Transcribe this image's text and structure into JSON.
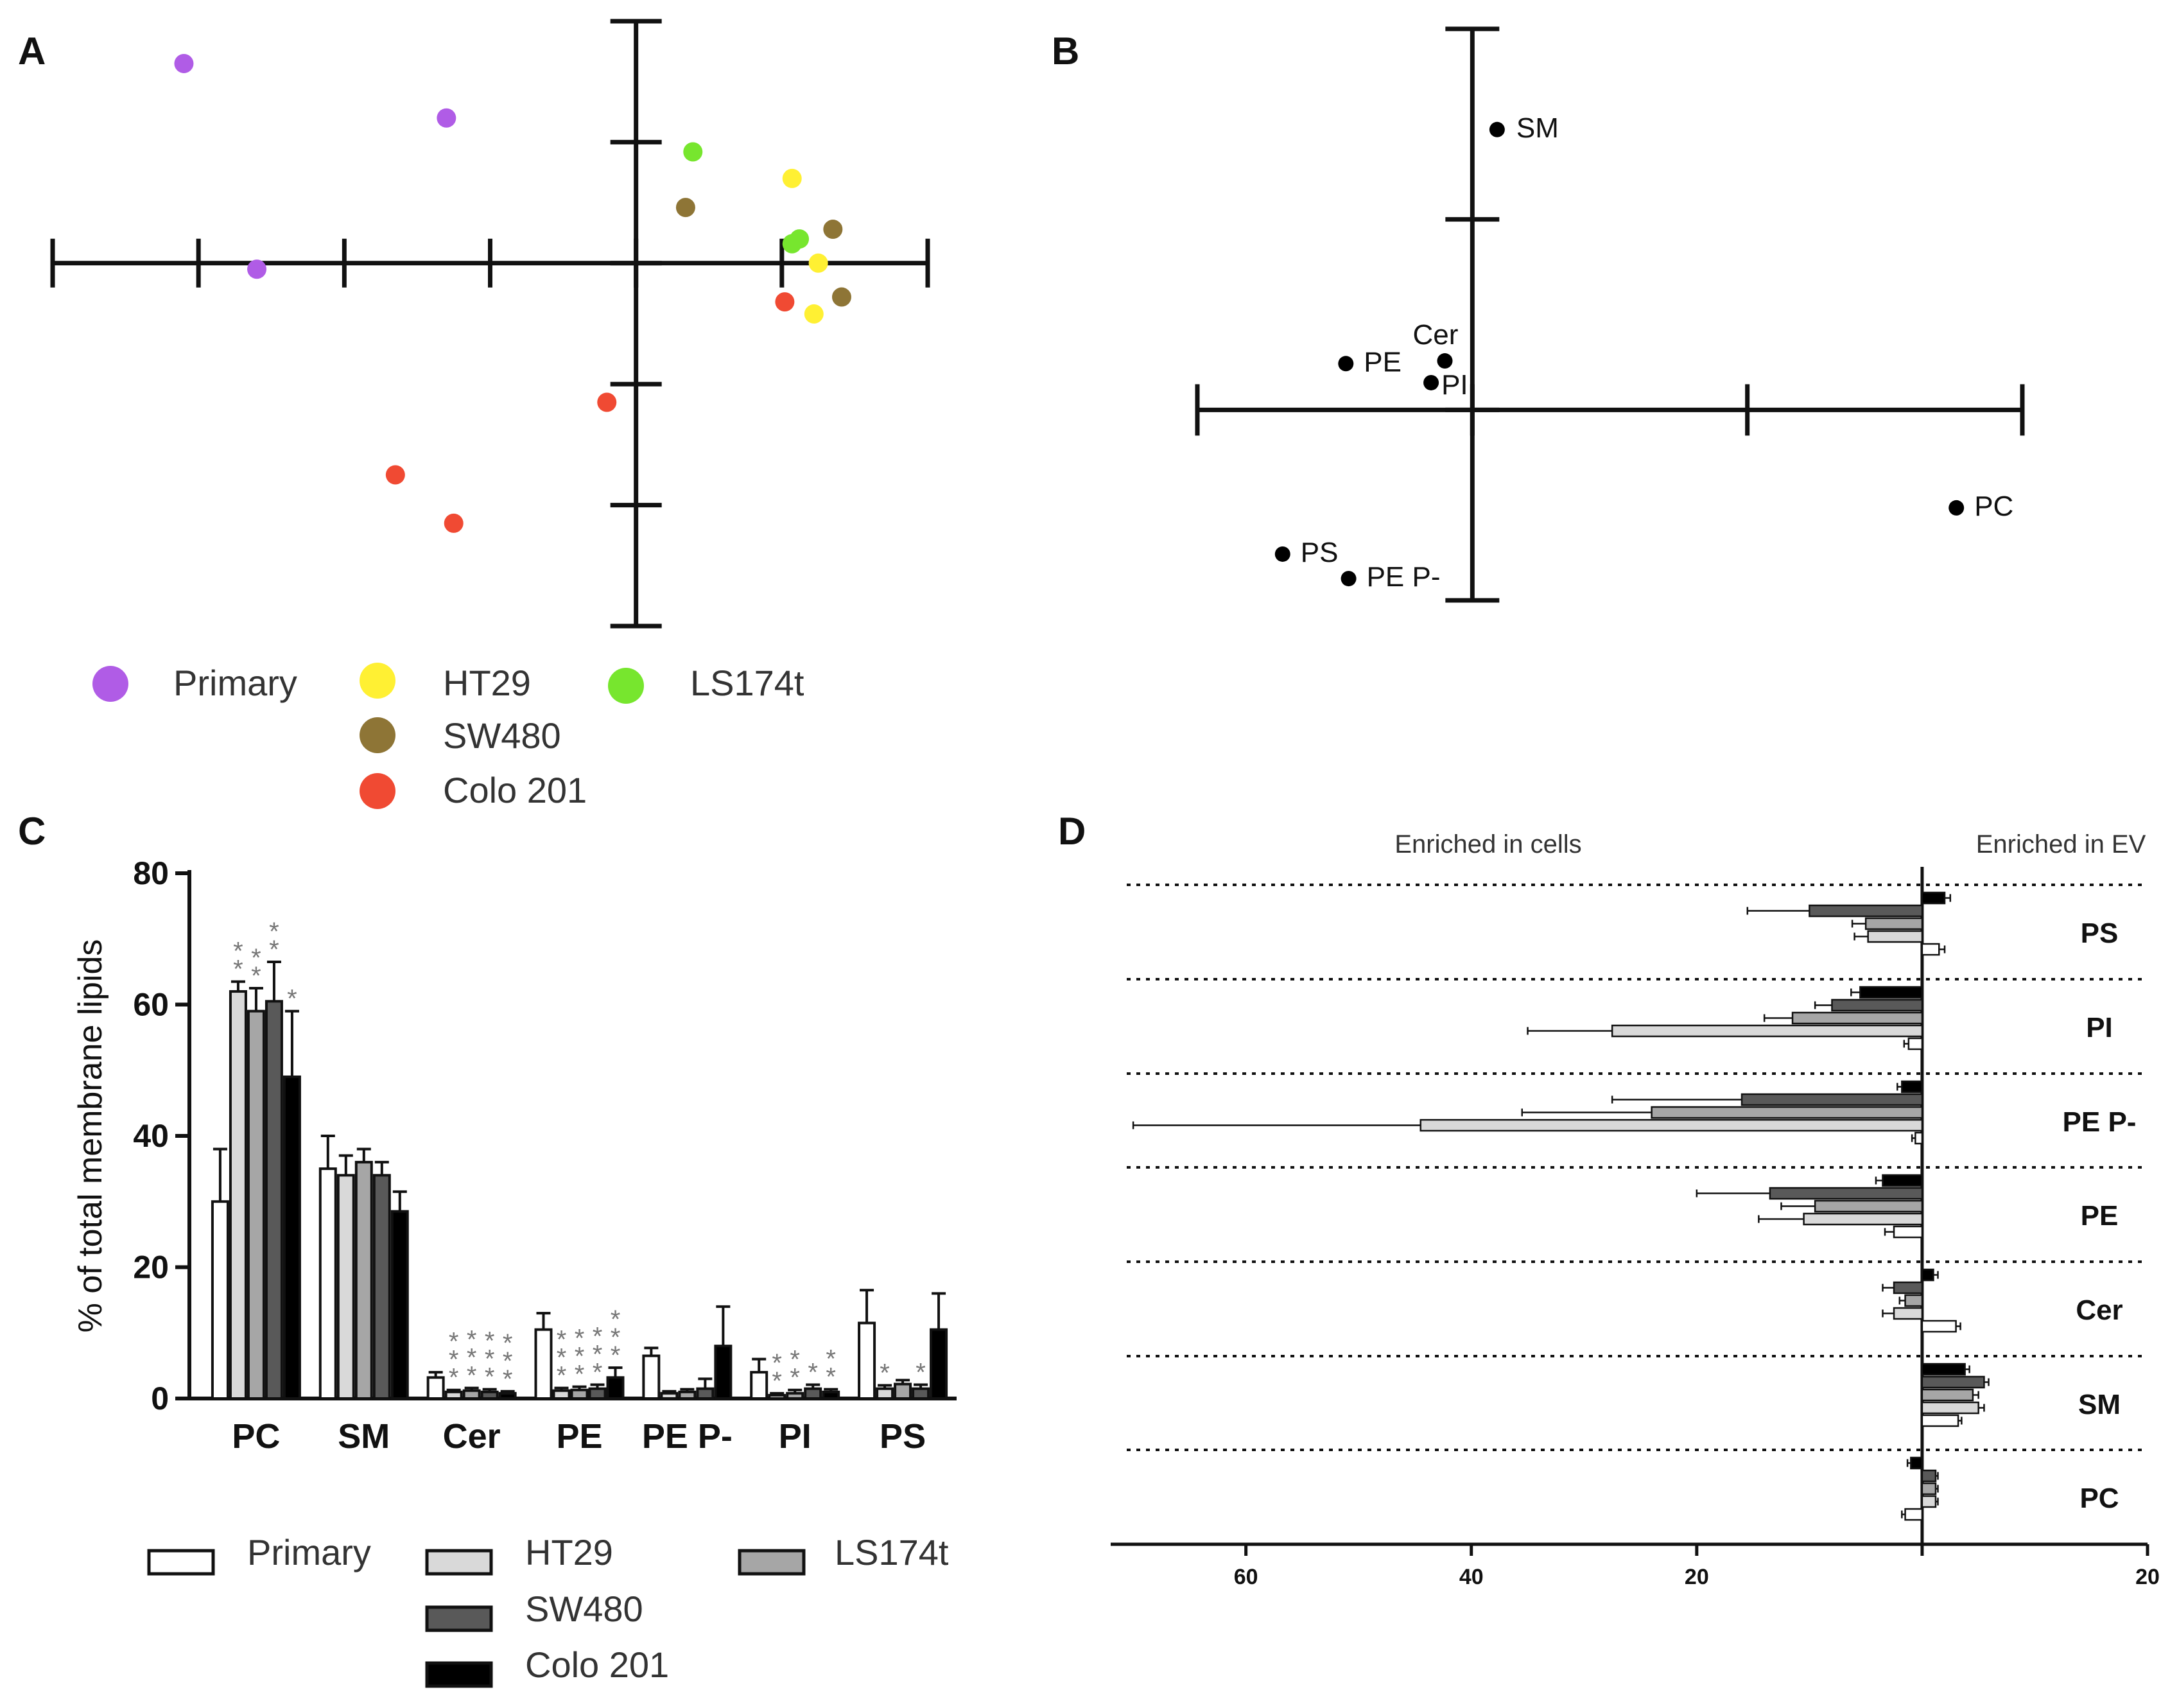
{
  "panels": {
    "a": "A",
    "b": "B",
    "c": "C",
    "d": "D"
  },
  "colors": {
    "primary": "#b05ce6",
    "ht29": "#fff033",
    "ls174t": "#77e62e",
    "sw480": "#8e7536",
    "colo201": "#f04a33",
    "bar_primary": "#ffffff",
    "bar_ht29": "#d9d9d9",
    "bar_ls174t": "#a6a6a6",
    "bar_sw480": "#595959",
    "bar_colo201": "#000000"
  },
  "legend_a": [
    {
      "key": "primary",
      "label": "Primary"
    },
    {
      "key": "ht29",
      "label": "HT29"
    },
    {
      "key": "ls174t",
      "label": "LS174t"
    },
    {
      "key": "sw480",
      "label": "SW480"
    },
    {
      "key": "colo201",
      "label": "Colo 201"
    }
  ],
  "legend_c": [
    {
      "key": "bar_primary",
      "label": "Primary"
    },
    {
      "key": "bar_ht29",
      "label": "HT29"
    },
    {
      "key": "bar_ls174t",
      "label": "LS174t"
    },
    {
      "key": "bar_sw480",
      "label": "SW480"
    },
    {
      "key": "bar_colo201",
      "label": "Colo 201"
    }
  ],
  "chart_data": [
    {
      "id": "A",
      "type": "scatter",
      "xlim": [
        -4,
        2
      ],
      "ylim": [
        -3,
        2
      ],
      "xticks": [
        -4,
        -3,
        -2,
        -1,
        0,
        1,
        2
      ],
      "yticks": [
        -3,
        -2,
        -1,
        0,
        1,
        2
      ],
      "series": [
        {
          "key": "primary",
          "points": [
            [
              -3.1,
              1.65
            ],
            [
              -1.3,
              1.2
            ],
            [
              -2.6,
              -0.05
            ]
          ]
        },
        {
          "key": "ht29",
          "points": [
            [
              1.07,
              0.7
            ],
            [
              1.25,
              0.0
            ],
            [
              1.22,
              -0.42
            ]
          ]
        },
        {
          "key": "ls174t",
          "points": [
            [
              0.39,
              0.92
            ],
            [
              1.12,
              0.2
            ],
            [
              1.07,
              0.16
            ]
          ]
        },
        {
          "key": "sw480",
          "points": [
            [
              0.34,
              0.46
            ],
            [
              1.35,
              0.28
            ],
            [
              1.41,
              -0.28
            ]
          ]
        },
        {
          "key": "colo201",
          "points": [
            [
              1.02,
              -0.32
            ],
            [
              -0.2,
              -1.15
            ],
            [
              -1.65,
              -1.75
            ],
            [
              -1.25,
              -2.15
            ]
          ]
        }
      ]
    },
    {
      "id": "B",
      "type": "scatter",
      "xlim": [
        -1,
        2
      ],
      "ylim": [
        -0.7,
        1.4
      ],
      "xticks": [
        -1,
        0,
        1,
        2
      ],
      "yticks": [
        -0.7,
        0,
        0.7,
        1.4
      ],
      "points": [
        {
          "label": "SM",
          "x": 0.09,
          "y": 1.03
        },
        {
          "label": "Cer",
          "x": -0.1,
          "y": 0.18
        },
        {
          "label": "PE",
          "x": -0.46,
          "y": 0.17
        },
        {
          "label": "PI",
          "x": -0.15,
          "y": 0.1
        },
        {
          "label": "PC",
          "x": 1.76,
          "y": -0.36
        },
        {
          "label": "PS",
          "x": -0.69,
          "y": -0.53
        },
        {
          "label": "PE P-",
          "x": -0.45,
          "y": -0.62
        }
      ]
    },
    {
      "id": "C",
      "type": "bar",
      "ylabel": "% of total membrane lipids",
      "ylim": [
        0,
        80
      ],
      "yticks": [
        0,
        20,
        40,
        60,
        80
      ],
      "categories": [
        "PC",
        "SM",
        "Cer",
        "PE",
        "PE P-",
        "PI",
        "PS"
      ],
      "series": [
        {
          "key": "bar_primary",
          "values": [
            30,
            35,
            3.2,
            10.5,
            6.5,
            4,
            11.5
          ],
          "errors": [
            8,
            5,
            0.8,
            2.5,
            1.2,
            2,
            5
          ]
        },
        {
          "key": "bar_ht29",
          "values": [
            62,
            34,
            1,
            1.2,
            0.8,
            0.5,
            1.5
          ],
          "errors": [
            1.5,
            3,
            0.3,
            0.4,
            0.3,
            0.3,
            0.5
          ]
        },
        {
          "key": "bar_ls174t",
          "values": [
            59,
            36,
            1.2,
            1.3,
            1,
            0.8,
            2.2
          ],
          "errors": [
            3.5,
            2,
            0.4,
            0.5,
            0.4,
            0.5,
            0.6
          ]
        },
        {
          "key": "bar_sw480",
          "values": [
            60.5,
            34,
            1,
            1.5,
            1.5,
            1.5,
            1.5
          ],
          "errors": [
            6,
            2,
            0.4,
            0.6,
            1.5,
            0.6,
            0.6
          ]
        },
        {
          "key": "bar_colo201",
          "values": [
            49,
            28.5,
            0.8,
            3.2,
            8,
            1,
            10.5
          ],
          "errors": [
            10,
            3,
            0.3,
            1.5,
            6,
            0.4,
            5.5
          ]
        }
      ],
      "significance": [
        {
          "category": 0,
          "series": 1,
          "marks": "**"
        },
        {
          "category": 0,
          "series": 2,
          "marks": "**"
        },
        {
          "category": 0,
          "series": 3,
          "marks": "**"
        },
        {
          "category": 0,
          "series": 4,
          "marks": "*"
        },
        {
          "category": 2,
          "series": 1,
          "marks": "***"
        },
        {
          "category": 2,
          "series": 2,
          "marks": "***"
        },
        {
          "category": 2,
          "series": 3,
          "marks": "***"
        },
        {
          "category": 2,
          "series": 4,
          "marks": "***"
        },
        {
          "category": 3,
          "series": 1,
          "marks": "***"
        },
        {
          "category": 3,
          "series": 2,
          "marks": "***"
        },
        {
          "category": 3,
          "series": 3,
          "marks": "***"
        },
        {
          "category": 3,
          "series": 4,
          "marks": "***"
        },
        {
          "category": 5,
          "series": 1,
          "marks": "**"
        },
        {
          "category": 5,
          "series": 2,
          "marks": "**"
        },
        {
          "category": 5,
          "series": 3,
          "marks": "*"
        },
        {
          "category": 5,
          "series": 4,
          "marks": "**"
        },
        {
          "category": 6,
          "series": 1,
          "marks": "*"
        },
        {
          "category": 6,
          "series": 3,
          "marks": "*"
        }
      ]
    },
    {
      "id": "D",
      "type": "bar",
      "orientation": "horizontal",
      "left_heading": "Enriched in cells",
      "right_heading": "Enriched in EV",
      "xlim": [
        -72,
        20
      ],
      "xticks": [
        -60,
        -40,
        -20,
        0,
        20
      ],
      "xtick_labels": [
        "60",
        "40",
        "20",
        "",
        "20"
      ],
      "categories": [
        "PS",
        "PI",
        "PE P-",
        "PE",
        "Cer",
        "SM",
        "PC"
      ],
      "series_keys": [
        "bar_colo201",
        "bar_sw480",
        "bar_ls174t",
        "bar_ht29",
        "bar_primary"
      ],
      "values": [
        [
          2,
          -10,
          -5,
          -4.8,
          1.5
        ],
        [
          -5.5,
          -8,
          -11.5,
          -27.5,
          -1.2
        ],
        [
          -1.8,
          -16,
          -24,
          -44.5,
          -0.6
        ],
        [
          -3.5,
          -13.5,
          -9.5,
          -10.5,
          -2.5
        ],
        [
          1,
          -2.5,
          -1.5,
          -2.5,
          3
        ],
        [
          3.8,
          5.5,
          4.5,
          5,
          3.2
        ],
        [
          -1,
          1.2,
          1.2,
          1.2,
          -1.5
        ]
      ],
      "errors": [
        [
          0.5,
          5.5,
          1.2,
          1.2,
          0.5
        ],
        [
          0.8,
          1.5,
          2.5,
          7.5,
          0.4
        ],
        [
          0.4,
          11.5,
          11.5,
          25.5,
          0.3
        ],
        [
          0.6,
          6.5,
          3,
          4,
          0.8
        ],
        [
          0.4,
          1,
          0.5,
          1,
          0.4
        ],
        [
          0.4,
          0.4,
          0.5,
          0.5,
          0.3
        ],
        [
          0.3,
          0.2,
          0.2,
          0.2,
          0.3
        ]
      ]
    }
  ]
}
